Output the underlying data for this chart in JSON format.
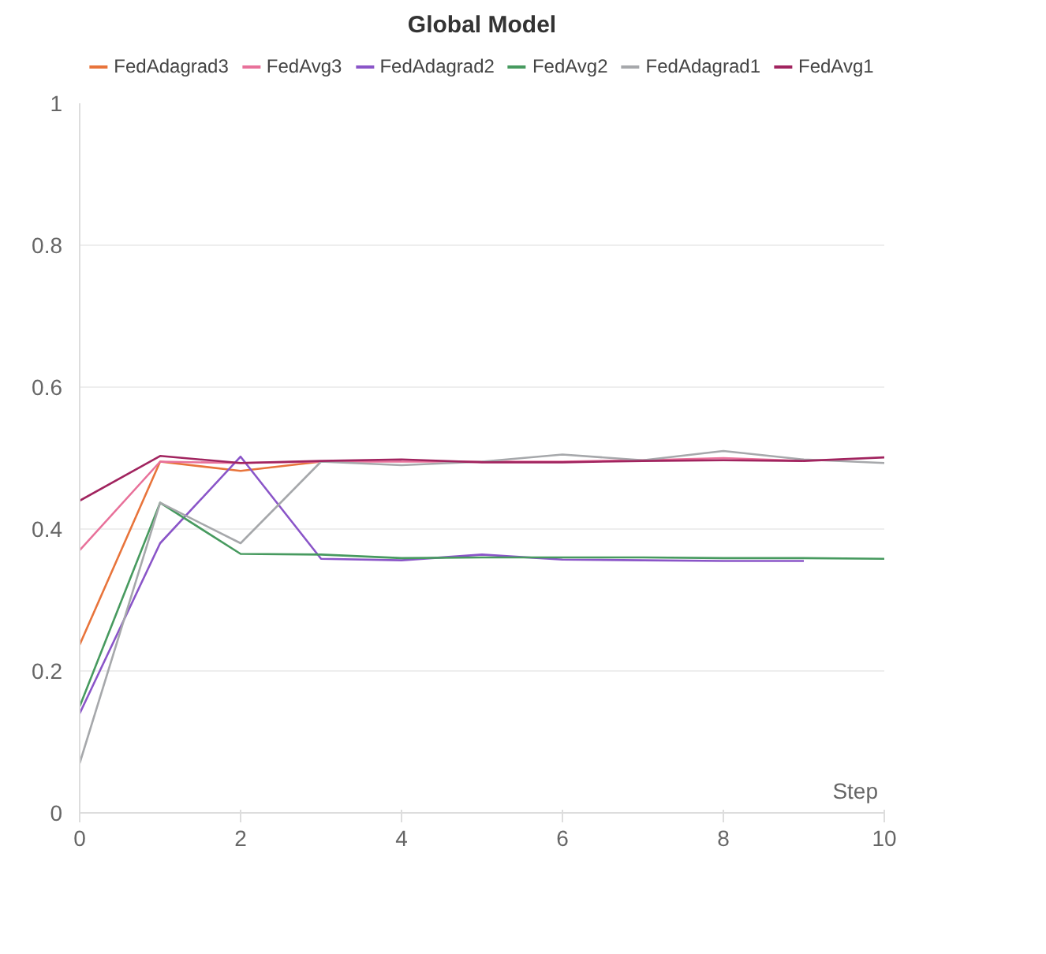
{
  "chart_data": {
    "type": "line",
    "title": "Global Model",
    "xlabel": "Step",
    "x": [
      0,
      1,
      2,
      3,
      4,
      5,
      6,
      7,
      8,
      9,
      10
    ],
    "series": [
      {
        "name": "FedAdagrad3",
        "color": "#e8743b",
        "values": [
          0.237,
          0.495,
          0.482,
          0.495,
          null,
          null,
          null,
          null,
          null,
          null,
          null
        ]
      },
      {
        "name": "FedAvg3",
        "color": "#e8719a",
        "values": [
          0.37,
          0.495,
          0.493,
          0.495,
          0.495,
          0.495,
          0.495,
          0.497,
          0.5,
          0.496,
          null
        ]
      },
      {
        "name": "FedAdagrad2",
        "color": "#8a55c8",
        "values": [
          0.14,
          0.38,
          0.502,
          0.358,
          0.356,
          0.364,
          0.357,
          0.356,
          0.355,
          0.355,
          null
        ]
      },
      {
        "name": "FedAvg2",
        "color": "#479a5f",
        "values": [
          0.15,
          0.437,
          0.365,
          0.364,
          0.359,
          0.36,
          0.36,
          0.36,
          0.359,
          0.359,
          0.358
        ]
      },
      {
        "name": "FedAdagrad1",
        "color": "#a6a8ab",
        "values": [
          0.07,
          0.437,
          0.38,
          0.495,
          0.49,
          0.495,
          0.505,
          0.497,
          0.51,
          0.498,
          0.493
        ]
      },
      {
        "name": "FedAvg1",
        "color": "#a1245f",
        "values": [
          0.44,
          0.503,
          0.493,
          0.496,
          0.498,
          0.494,
          0.494,
          0.496,
          0.497,
          0.496,
          0.501
        ]
      }
    ],
    "xlim": [
      0,
      10
    ],
    "ylim": [
      0,
      1
    ],
    "xticks": [
      0,
      2,
      4,
      6,
      8,
      10
    ],
    "yticks": [
      0,
      0.2,
      0.4,
      0.6,
      0.8,
      1
    ],
    "grid": "y",
    "legend": "top",
    "line_style": "solid"
  }
}
